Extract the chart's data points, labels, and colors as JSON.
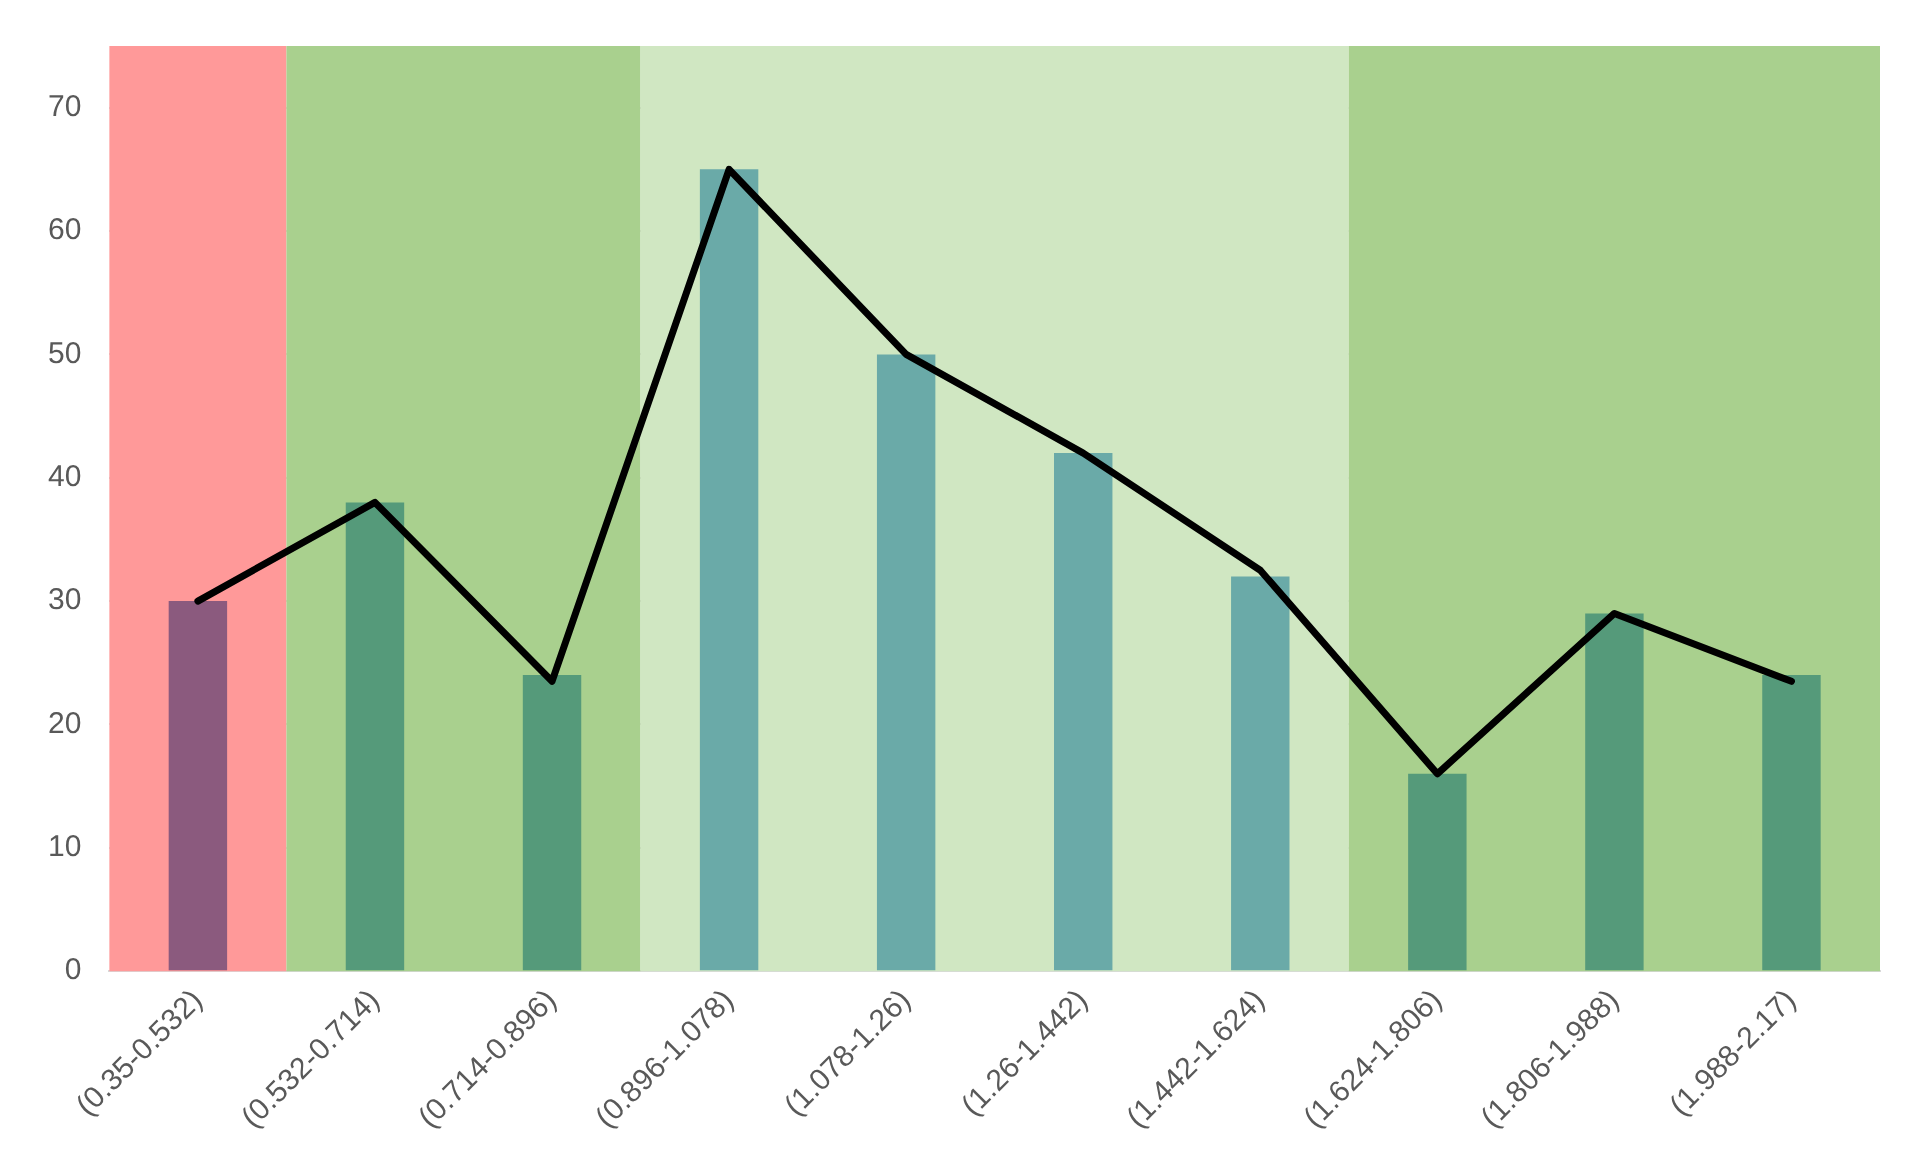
{
  "chart_data": {
    "type": "bar",
    "categories": [
      "(0.35-0.532)",
      "(0.532-0.714)",
      "(0.714-0.896)",
      "(0.896-1.078)",
      "(1.078-1.26)",
      "(1.26-1.442)",
      "(1.442-1.624)",
      "(1.624-1.806)",
      "(1.806-1.988)",
      "(1.988-2.17)"
    ],
    "series": [
      {
        "colors": [
          "#8b5a7e",
          "#559a7a",
          "#559a7a",
          "#6aaaa8",
          "#6aaaa8",
          "#6aaaa8",
          "#6aaaa8",
          "#559a7a",
          "#559a7a",
          "#559a7a"
        ],
        "values": [
          30,
          38,
          24,
          65,
          50,
          42,
          32,
          16,
          29,
          24
        ]
      },
      {
        "type": "line",
        "color": "#000000",
        "values": [
          30,
          38,
          23.5,
          65,
          50,
          42,
          32.5,
          16,
          29,
          23.5
        ]
      }
    ],
    "bands": [
      {
        "axis": "x",
        "from": "(0.35-0.532)",
        "to": "(0.35-0.532)",
        "color": "#ff9999"
      },
      {
        "axis": "x",
        "from": "(0.532-0.714)",
        "to": "(0.714-0.896)",
        "color": "#a9d08e"
      },
      {
        "axis": "x",
        "from": "(0.896-1.078)",
        "to": "(1.442-1.624)",
        "color": "#d0e7c2"
      },
      {
        "axis": "x",
        "from": "(1.624-1.806)",
        "to": "(1.988-2.17)",
        "color": "#a9d08e"
      }
    ],
    "ylim": [
      0,
      75
    ],
    "yticks": [
      0,
      10,
      20,
      30,
      40,
      50,
      60,
      70
    ],
    "grid": "y",
    "legend": false,
    "marker": "none",
    "line_style": "solid"
  }
}
